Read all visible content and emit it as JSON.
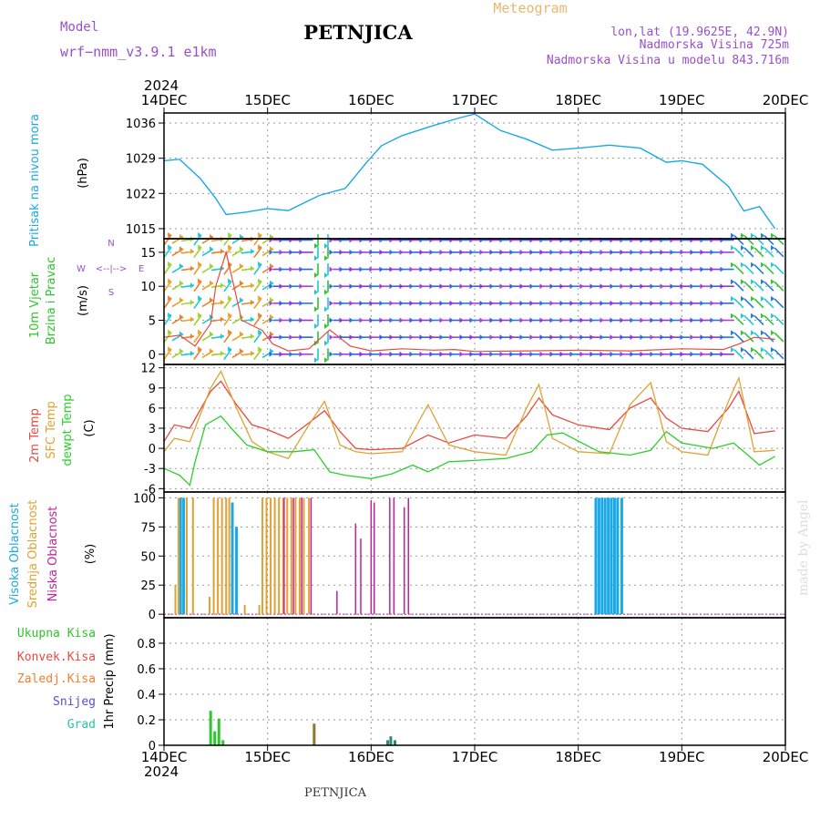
{
  "header": {
    "model_label": "Model",
    "model_name": "wrf−nmm_v3.9.1  e1km",
    "title": "PETNJICA",
    "meteogram": "Meteogram",
    "lonlat": "lon,lat (19.9625E, 42.9N)",
    "elevation": "Nadmorska Visina 725m",
    "model_elevation": "Nadmorska Visina u modelu 843.716m",
    "footer_title": "PETNJICA",
    "credit": "made by Angel"
  },
  "colors": {
    "pressure": "#1ba8e6",
    "wind_label": "#2ec52e",
    "temp2m": "#e84a3f",
    "sfc_temp": "#e1a233",
    "dewpt": "#2dcf2d",
    "cloud_high": "#1ba8e6",
    "cloud_mid": "#e1a233",
    "cloud_low": "#c0239a",
    "precip_total": "#2ec52e",
    "precip_conv": "#e84a3f",
    "precip_frozen": "#f07f2a",
    "snow": "#5050e0",
    "graupel": "#2bc2a8",
    "purple_text": "#9a4fcf",
    "meteogram_text": "#e9b771"
  },
  "chart_data": [
    {
      "type": "line",
      "ylabel_lines": [
        "Pritisak na nivou mora",
        "(hPa)"
      ],
      "ylim": [
        1013,
        1038
      ],
      "yticks": [
        "1015",
        "1022",
        "1029",
        "1036"
      ],
      "grid": true,
      "series": [
        {
          "x": [
            0,
            0.15,
            0.35,
            0.5,
            0.6,
            0.8,
            1.0,
            1.2,
            1.5,
            1.75,
            1.95,
            2.1,
            2.3,
            2.6,
            2.85,
            3.0,
            3.25,
            3.5,
            3.75,
            4.0,
            4.3,
            4.6,
            4.85,
            5.0,
            5.2,
            5.45,
            5.6,
            5.75,
            5.9
          ],
          "values": [
            1028.5,
            1028.8,
            1025,
            1021,
            1017.8,
            1018.3,
            1019,
            1018.6,
            1021.6,
            1023,
            1028,
            1031.5,
            1033.5,
            1035.5,
            1037,
            1037.8,
            1034.5,
            1032.8,
            1030.6,
            1031,
            1031.6,
            1031,
            1028.2,
            1028.5,
            1027.8,
            1023.4,
            1018.5,
            1019.4,
            1015
          ]
        }
      ]
    },
    {
      "type": "line",
      "ylabel_lines": [
        "10m Vjetar",
        "Brzina i Pravac",
        "(m/s)"
      ],
      "ylim": [
        -1.5,
        17
      ],
      "yticks": [
        "0",
        "5",
        "10",
        "15"
      ],
      "grid": true,
      "series": [
        {
          "name": "wind speed",
          "x": [
            0,
            0.15,
            0.3,
            0.45,
            0.5,
            0.6,
            0.75,
            0.95,
            1.05,
            1.2,
            1.4,
            1.6,
            1.8,
            2.0,
            2.3,
            2.6,
            2.8,
            3.0,
            3.5,
            4.0,
            4.5,
            5.0,
            5.4,
            5.55,
            5.7,
            5.9
          ],
          "values": [
            2.5,
            2.8,
            1.2,
            4.5,
            10,
            15,
            5,
            3.5,
            1.5,
            0.5,
            0.8,
            3.6,
            1.2,
            0.5,
            0.8,
            0.6,
            0.7,
            0.4,
            0.5,
            0.6,
            0.5,
            0.8,
            0.7,
            1.5,
            2.5,
            2.2
          ]
        }
      ]
    },
    {
      "type": "line",
      "ylabel_lines": [
        "2m Temp",
        "SFC Temp",
        "dewpt Temp",
        "(C)"
      ],
      "ylim": [
        -6.5,
        12.5
      ],
      "yticks": [
        "-6",
        "-3",
        "0",
        "3",
        "6",
        "9",
        "12"
      ],
      "grid": true,
      "series": [
        {
          "name": "2m Temp",
          "x": [
            0,
            0.1,
            0.25,
            0.45,
            0.55,
            0.7,
            0.85,
            1.0,
            1.2,
            1.4,
            1.55,
            1.7,
            1.85,
            2.0,
            2.3,
            2.55,
            2.75,
            3.0,
            3.3,
            3.5,
            3.62,
            3.75,
            4.0,
            4.3,
            4.5,
            4.7,
            4.85,
            5.0,
            5.25,
            5.45,
            5.55,
            5.7,
            5.9
          ],
          "values": [
            1.0,
            3.5,
            3.0,
            8.5,
            10,
            6.5,
            3.5,
            2.8,
            1.5,
            3.8,
            5.6,
            2.5,
            0,
            -0.2,
            0,
            2.0,
            0.8,
            2.0,
            1.5,
            4.8,
            7.5,
            5.0,
            3.5,
            2.8,
            6.0,
            7.5,
            4.5,
            3.0,
            2.5,
            6.0,
            8.5,
            2.2,
            2.6
          ]
        },
        {
          "name": "SFC Temp",
          "x": [
            0,
            0.1,
            0.25,
            0.45,
            0.55,
            0.7,
            0.85,
            1.0,
            1.2,
            1.4,
            1.55,
            1.7,
            1.85,
            2.0,
            2.3,
            2.55,
            2.75,
            3.0,
            3.3,
            3.5,
            3.62,
            3.75,
            4.0,
            4.3,
            4.5,
            4.7,
            4.85,
            5.0,
            5.25,
            5.45,
            5.55,
            5.7,
            5.9
          ],
          "values": [
            -0.5,
            1.5,
            1.0,
            9.0,
            11.5,
            6.0,
            1.0,
            -0.5,
            -1.5,
            3.5,
            7.0,
            0.5,
            -0.5,
            -0.8,
            -0.5,
            6.5,
            0.5,
            -0.5,
            -1.0,
            6.0,
            9.5,
            1.5,
            -0.5,
            -0.8,
            6.5,
            9.8,
            1.0,
            -0.5,
            -1.0,
            7.0,
            10.5,
            -0.5,
            -0.3
          ]
        },
        {
          "name": "dewpt Temp",
          "x": [
            0,
            0.15,
            0.25,
            0.3,
            0.4,
            0.55,
            0.65,
            0.8,
            1.0,
            1.25,
            1.45,
            1.6,
            1.75,
            2.0,
            2.2,
            2.4,
            2.55,
            2.75,
            3.0,
            3.3,
            3.55,
            3.7,
            3.85,
            4.2,
            4.5,
            4.7,
            4.85,
            5.0,
            5.3,
            5.5,
            5.6,
            5.75,
            5.9
          ],
          "values": [
            -3,
            -4,
            -5.5,
            -2,
            3.5,
            4.8,
            3,
            0.5,
            -0.5,
            -0.5,
            -0.2,
            -3.5,
            -4,
            -4.5,
            -3.8,
            -2.5,
            -3.5,
            -2,
            -1.8,
            -1.5,
            -0.5,
            2.0,
            2.3,
            -0.5,
            -1,
            -0.3,
            2.5,
            0.8,
            0,
            0.8,
            -0.5,
            -2.5,
            -1.2
          ]
        }
      ]
    },
    {
      "type": "bar",
      "ylabel_lines": [
        "Visoka Oblacnost",
        "Srednja Oblacnost",
        "Niska Oblacnost",
        "(%)"
      ],
      "ylim": [
        -3,
        105
      ],
      "yticks": [
        "0",
        "25",
        "50",
        "75",
        "100"
      ],
      "grid": true,
      "series": [
        {
          "name": "Visoka Oblacnost",
          "bars": [
            [
              0.16,
              100
            ],
            [
              0.19,
              100
            ],
            [
              0.66,
              96
            ],
            [
              0.7,
              75
            ],
            [
              4.17,
              100
            ],
            [
              4.2,
              100
            ],
            [
              4.23,
              100
            ],
            [
              4.26,
              100
            ],
            [
              4.29,
              100
            ],
            [
              4.32,
              100
            ],
            [
              4.35,
              100
            ],
            [
              4.38,
              100
            ],
            [
              4.42,
              100
            ]
          ]
        },
        {
          "name": "Srednja Oblacnost",
          "bars": [
            [
              0.11,
              25
            ],
            [
              0.14,
              100
            ],
            [
              0.22,
              100
            ],
            [
              0.28,
              100
            ],
            [
              0.44,
              15
            ],
            [
              0.48,
              100
            ],
            [
              0.52,
              100
            ],
            [
              0.56,
              100
            ],
            [
              0.6,
              100
            ],
            [
              0.63,
              100
            ],
            [
              0.78,
              8
            ],
            [
              0.92,
              8
            ],
            [
              0.95,
              100
            ],
            [
              0.99,
              100
            ],
            [
              1.03,
              100
            ],
            [
              1.07,
              100
            ],
            [
              1.11,
              100
            ],
            [
              1.15,
              100
            ],
            [
              1.19,
              100
            ],
            [
              1.23,
              100
            ],
            [
              1.27,
              100
            ],
            [
              1.31,
              100
            ],
            [
              1.35,
              100
            ],
            [
              1.4,
              100
            ]
          ]
        },
        {
          "name": "Niska Oblacnost",
          "bars": [
            [
              1.16,
              100
            ],
            [
              1.25,
              100
            ],
            [
              1.33,
              100
            ],
            [
              1.42,
              100
            ],
            [
              1.67,
              20
            ],
            [
              1.85,
              78
            ],
            [
              1.9,
              65
            ],
            [
              2.0,
              98
            ],
            [
              2.03,
              96
            ],
            [
              2.18,
              100
            ],
            [
              2.22,
              100
            ],
            [
              2.32,
              92
            ],
            [
              2.36,
              100
            ]
          ]
        }
      ]
    },
    {
      "type": "bar",
      "ylabel_lines": [
        "Ukupna  Kisa",
        "Konvek.Kisa",
        "Zaledj.Kisa",
        "Snijeg",
        "Grad",
        "1hr Precip (mm)"
      ],
      "ylim": [
        0,
        1.0
      ],
      "yticks": [
        "0",
        "0.2",
        "0.4",
        "0.6",
        "0.8"
      ],
      "grid": true,
      "series": [
        {
          "name": "Ukupna Kisa",
          "bars": [
            [
              0.45,
              0.27
            ],
            [
              0.49,
              0.11
            ],
            [
              0.53,
              0.21
            ],
            [
              0.57,
              0.04
            ]
          ]
        },
        {
          "name": "Snijeg",
          "bars": [
            [
              1.45,
              0.17
            ]
          ]
        },
        {
          "name": "Grad",
          "bars": [
            [
              2.16,
              0.04
            ],
            [
              2.19,
              0.07
            ],
            [
              2.23,
              0.04
            ]
          ]
        }
      ]
    }
  ],
  "x_axis": {
    "year": "2024",
    "ticks": [
      "14DEC",
      "15DEC",
      "16DEC",
      "17DEC",
      "18DEC",
      "19DEC",
      "20DEC"
    ]
  }
}
